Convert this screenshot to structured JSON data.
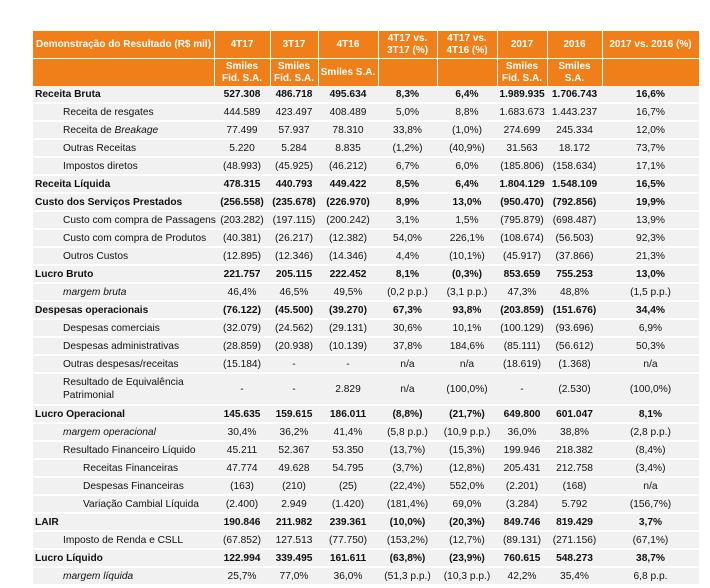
{
  "header": {
    "title": "Demonstração do Resultado (R$ mil)",
    "cols": [
      "4T17",
      "3T17",
      "4T16",
      "4T17 vs. 3T17 (%)",
      "4T17 vs. 4T16 (%)",
      "2017",
      "2016",
      "2017 vs. 2016 (%)"
    ],
    "entities": [
      "Smiles Fid. S.A.",
      "Smiles Fid. S.A.",
      "Smiles S.A.",
      "",
      "",
      "Smiles Fid. S.A.",
      "Smiles S.A.",
      ""
    ]
  },
  "accent": "#f07f1a",
  "rows": [
    {
      "label": "Receita Bruta",
      "style": "bold",
      "values": [
        "527.308",
        "486.718",
        "495.634",
        "8,3%",
        "6,4%",
        "1.989.935",
        "1.706.743",
        "16,6%"
      ]
    },
    {
      "label": "Receita de resgates",
      "indent": 1,
      "values": [
        "444.589",
        "423.497",
        "408.489",
        "5,0%",
        "8,8%",
        "1.683.673",
        "1.443.237",
        "16,7%"
      ]
    },
    {
      "label": "Receita de ",
      "label_em": "Breakage",
      "indent": 1,
      "values": [
        "77.499",
        "57.937",
        "78.310",
        "33,8%",
        "(1,0%)",
        "274.699",
        "245.334",
        "12,0%"
      ]
    },
    {
      "label": "Outras Receitas",
      "indent": 1,
      "values": [
        "5.220",
        "5.284",
        "8.835",
        "(1,2%)",
        "(40,9%)",
        "31.563",
        "18.172",
        "73,7%"
      ]
    },
    {
      "label": "Impostos diretos",
      "indent": 1,
      "values": [
        "(48.993)",
        "(45.925)",
        "(46.212)",
        "6,7%",
        "6,0%",
        "(185.806)",
        "(158.634)",
        "17,1%"
      ]
    },
    {
      "label": "Receita Líquida",
      "style": "bold",
      "values": [
        "478.315",
        "440.793",
        "449.422",
        "8,5%",
        "6,4%",
        "1.804.129",
        "1.548.109",
        "16,5%"
      ]
    },
    {
      "label": "Custo dos Serviços Prestados",
      "style": "bold",
      "values": [
        "(256.558)",
        "(235.678)",
        "(226.970)",
        "8,9%",
        "13,0%",
        "(950.470)",
        "(792.856)",
        "19,9%"
      ]
    },
    {
      "label": "Custo com compra de Passagens",
      "indent": 1,
      "values": [
        "(203.282)",
        "(197.115)",
        "(200.242)",
        "3,1%",
        "1,5%",
        "(795.879)",
        "(698.487)",
        "13,9%"
      ]
    },
    {
      "label": "Custo com compra de Produtos",
      "indent": 1,
      "values": [
        "(40.381)",
        "(26.217)",
        "(12.382)",
        "54,0%",
        "226,1%",
        "(108.674)",
        "(56.503)",
        "92,3%"
      ]
    },
    {
      "label": "Outros Custos",
      "indent": 1,
      "values": [
        "(12.895)",
        "(12.346)",
        "(14.346)",
        "4,4%",
        "(10,1%)",
        "(45.917)",
        "(37.866)",
        "21,3%"
      ]
    },
    {
      "label": "Lucro Bruto",
      "style": "bold",
      "values": [
        "221.757",
        "205.115",
        "222.452",
        "8,1%",
        "(0,3%)",
        "853.659",
        "755.253",
        "13,0%"
      ]
    },
    {
      "label": "margem bruta",
      "indent": 1,
      "italic": true,
      "values": [
        "46,4%",
        "46,5%",
        "49,5%",
        "(0,2 p.p.)",
        "(3,1 p.p.)",
        "47,3%",
        "48,8%",
        "(1,5 p.p.)"
      ]
    },
    {
      "label": "Despesas operacionais",
      "style": "bold",
      "values": [
        "(76.122)",
        "(45.500)",
        "(39.270)",
        "67,3%",
        "93,8%",
        "(203.859)",
        "(151.676)",
        "34,4%"
      ]
    },
    {
      "label": "Despesas comerciais",
      "indent": 1,
      "values": [
        "(32.079)",
        "(24.562)",
        "(29.131)",
        "30,6%",
        "10,1%",
        "(100.129)",
        "(93.696)",
        "6,9%"
      ]
    },
    {
      "label": "Despesas administrativas",
      "indent": 1,
      "values": [
        "(28.859)",
        "(20.938)",
        "(10.139)",
        "37,8%",
        "184,6%",
        "(85.111)",
        "(56.612)",
        "50,3%"
      ]
    },
    {
      "label": "Outras despesas/receitas",
      "indent": 1,
      "values": [
        "(15.184)",
        "-",
        "-",
        "n/a",
        "n/a",
        "(18.619)",
        "(1.368)",
        "n/a"
      ]
    },
    {
      "label": "Resultado de Equivalência Patrimonial",
      "indent": 1,
      "wrap": true,
      "values": [
        "-",
        "-",
        "2.829",
        "n/a",
        "(100,0%)",
        "-",
        "(2.530)",
        "(100,0%)"
      ]
    },
    {
      "label": "Lucro Operacional",
      "style": "bold",
      "values": [
        "145.635",
        "159.615",
        "186.011",
        "(8,8%)",
        "(21,7%)",
        "649.800",
        "601.047",
        "8,1%"
      ]
    },
    {
      "label": "margem operacional",
      "indent": 1,
      "italic": true,
      "values": [
        "30,4%",
        "36,2%",
        "41,4%",
        "(5,8 p.p.)",
        "(10,9 p.p.)",
        "36,0%",
        "38,8%",
        "(2,8 p.p.)"
      ]
    },
    {
      "label": "Resultado Financeiro Líquido",
      "indent": 1,
      "values": [
        "45.211",
        "52.367",
        "53.350",
        "(13,7%)",
        "(15,3%)",
        "199.946",
        "218.382",
        "(8,4%)"
      ]
    },
    {
      "label": "Receitas Financeiras",
      "indent": 2,
      "values": [
        "47.774",
        "49.628",
        "54.795",
        "(3,7%)",
        "(12,8%)",
        "205.431",
        "212.758",
        "(3,4%)"
      ]
    },
    {
      "label": "Despesas Financeiras",
      "indent": 2,
      "values": [
        "(163)",
        "(210)",
        "(25)",
        "(22,4%)",
        "552,0%",
        "(2.201)",
        "(168)",
        "n/a"
      ]
    },
    {
      "label": "Variação Cambial Líquida",
      "indent": 2,
      "values": [
        "(2.400)",
        "2.949",
        "(1.420)",
        "(181,4%)",
        "69,0%",
        "(3.284)",
        "5.792",
        "(156,7%)"
      ]
    },
    {
      "label": "LAIR",
      "style": "bold",
      "values": [
        "190.846",
        "211.982",
        "239.361",
        "(10,0%)",
        "(20,3%)",
        "849.746",
        "819.429",
        "3,7%"
      ]
    },
    {
      "label": "Imposto de Renda e CSLL",
      "indent": 1,
      "values": [
        "(67.852)",
        "127.513",
        "(77.750)",
        "(153,2%)",
        "(12,7%)",
        "(89.131)",
        "(271.156)",
        "(67,1%)"
      ]
    },
    {
      "label": "Lucro Líquido",
      "style": "bold",
      "values": [
        "122.994",
        "339.495",
        "161.611",
        "(63,8%)",
        "(23,9%)",
        "760.615",
        "548.273",
        "38,7%"
      ]
    },
    {
      "label": "margem líquida",
      "indent": 1,
      "italic": true,
      "values": [
        "25,7%",
        "77,0%",
        "36,0%",
        "(51,3 p.p.)",
        "(10,3 p.p.)",
        "42,2%",
        "35,4%",
        "6,8 p.p."
      ]
    }
  ]
}
